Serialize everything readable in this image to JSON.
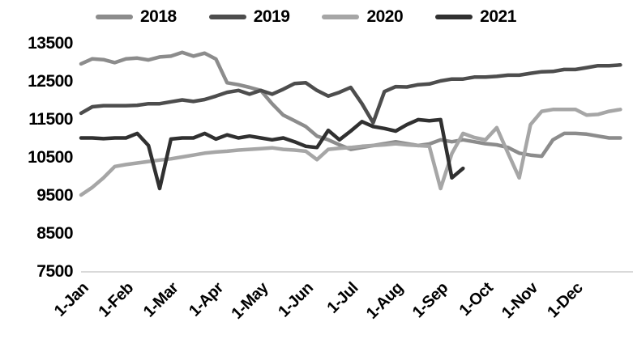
{
  "chart_data": {
    "type": "line",
    "title": "",
    "xlabel": "",
    "ylabel": "",
    "x_tick_labels": [
      "1-Jan",
      "1-Feb",
      "1-Mar",
      "1-Apr",
      "1-May",
      "1-Jun",
      "1-Jul",
      "1-Aug",
      "1-Sep",
      "1-Oct",
      "1-Nov",
      "1-Dec"
    ],
    "y_ticks": [
      13500,
      12500,
      11500,
      10500,
      9500,
      8500,
      7500
    ],
    "ylim": [
      7500,
      13500
    ],
    "points_per_month": 4,
    "grid": false,
    "legend_position": "top",
    "series": [
      {
        "name": "2018",
        "color": "#8c8c8c",
        "values": [
          12950,
          13080,
          13060,
          12980,
          13080,
          13100,
          13050,
          13130,
          13150,
          13250,
          13150,
          13230,
          13075,
          12450,
          12400,
          12330,
          12250,
          11900,
          11600,
          11450,
          11300,
          11050,
          10950,
          10820,
          10700,
          10750,
          10800,
          10850,
          10900,
          10850,
          10800,
          10840,
          10950,
          10900,
          10950,
          10900,
          10850,
          10820,
          10750,
          10600,
          10550,
          10520,
          10950,
          11120,
          11120,
          11100,
          11050,
          11000,
          11000
        ]
      },
      {
        "name": "2019",
        "color": "#4d4d4d",
        "values": [
          11650,
          11820,
          11850,
          11850,
          11850,
          11860,
          11900,
          11900,
          11950,
          12000,
          11960,
          12010,
          12100,
          12200,
          12250,
          12150,
          12250,
          12150,
          12280,
          12430,
          12450,
          12250,
          12100,
          12200,
          12330,
          11900,
          11400,
          12220,
          12350,
          12340,
          12400,
          12420,
          12500,
          12550,
          12550,
          12600,
          12600,
          12620,
          12650,
          12650,
          12700,
          12740,
          12750,
          12800,
          12800,
          12850,
          12900,
          12900,
          12920
        ]
      },
      {
        "name": "2020",
        "color": "#a6a6a6",
        "values": [
          9500,
          9700,
          9950,
          10250,
          10300,
          10340,
          10380,
          10420,
          10450,
          10500,
          10550,
          10600,
          10630,
          10650,
          10680,
          10700,
          10720,
          10740,
          10700,
          10680,
          10650,
          10430,
          10700,
          10730,
          10750,
          10780,
          10800,
          10820,
          10850,
          10820,
          10800,
          10780,
          9670,
          10590,
          11120,
          11010,
          10950,
          11270,
          10600,
          9950,
          11350,
          11700,
          11750,
          11750,
          11750,
          11600,
          11620,
          11700,
          11750
        ]
      },
      {
        "name": "2021",
        "color": "#303030",
        "values": [
          11000,
          11000,
          10980,
          11000,
          11000,
          11120,
          10800,
          9670,
          10970,
          11000,
          11000,
          11120,
          10970,
          11080,
          11000,
          11050,
          11000,
          10950,
          11000,
          10900,
          10780,
          10750,
          11200,
          10950,
          11180,
          11430,
          11300,
          11250,
          11180,
          11350,
          11480,
          11450,
          11480,
          9950,
          10200
        ]
      }
    ]
  },
  "legend": {
    "items": [
      "2018",
      "2019",
      "2020",
      "2021"
    ]
  },
  "colors": {
    "background": "#ffffff",
    "axis_line": "#d9d9d9",
    "label_text": "#000000"
  }
}
